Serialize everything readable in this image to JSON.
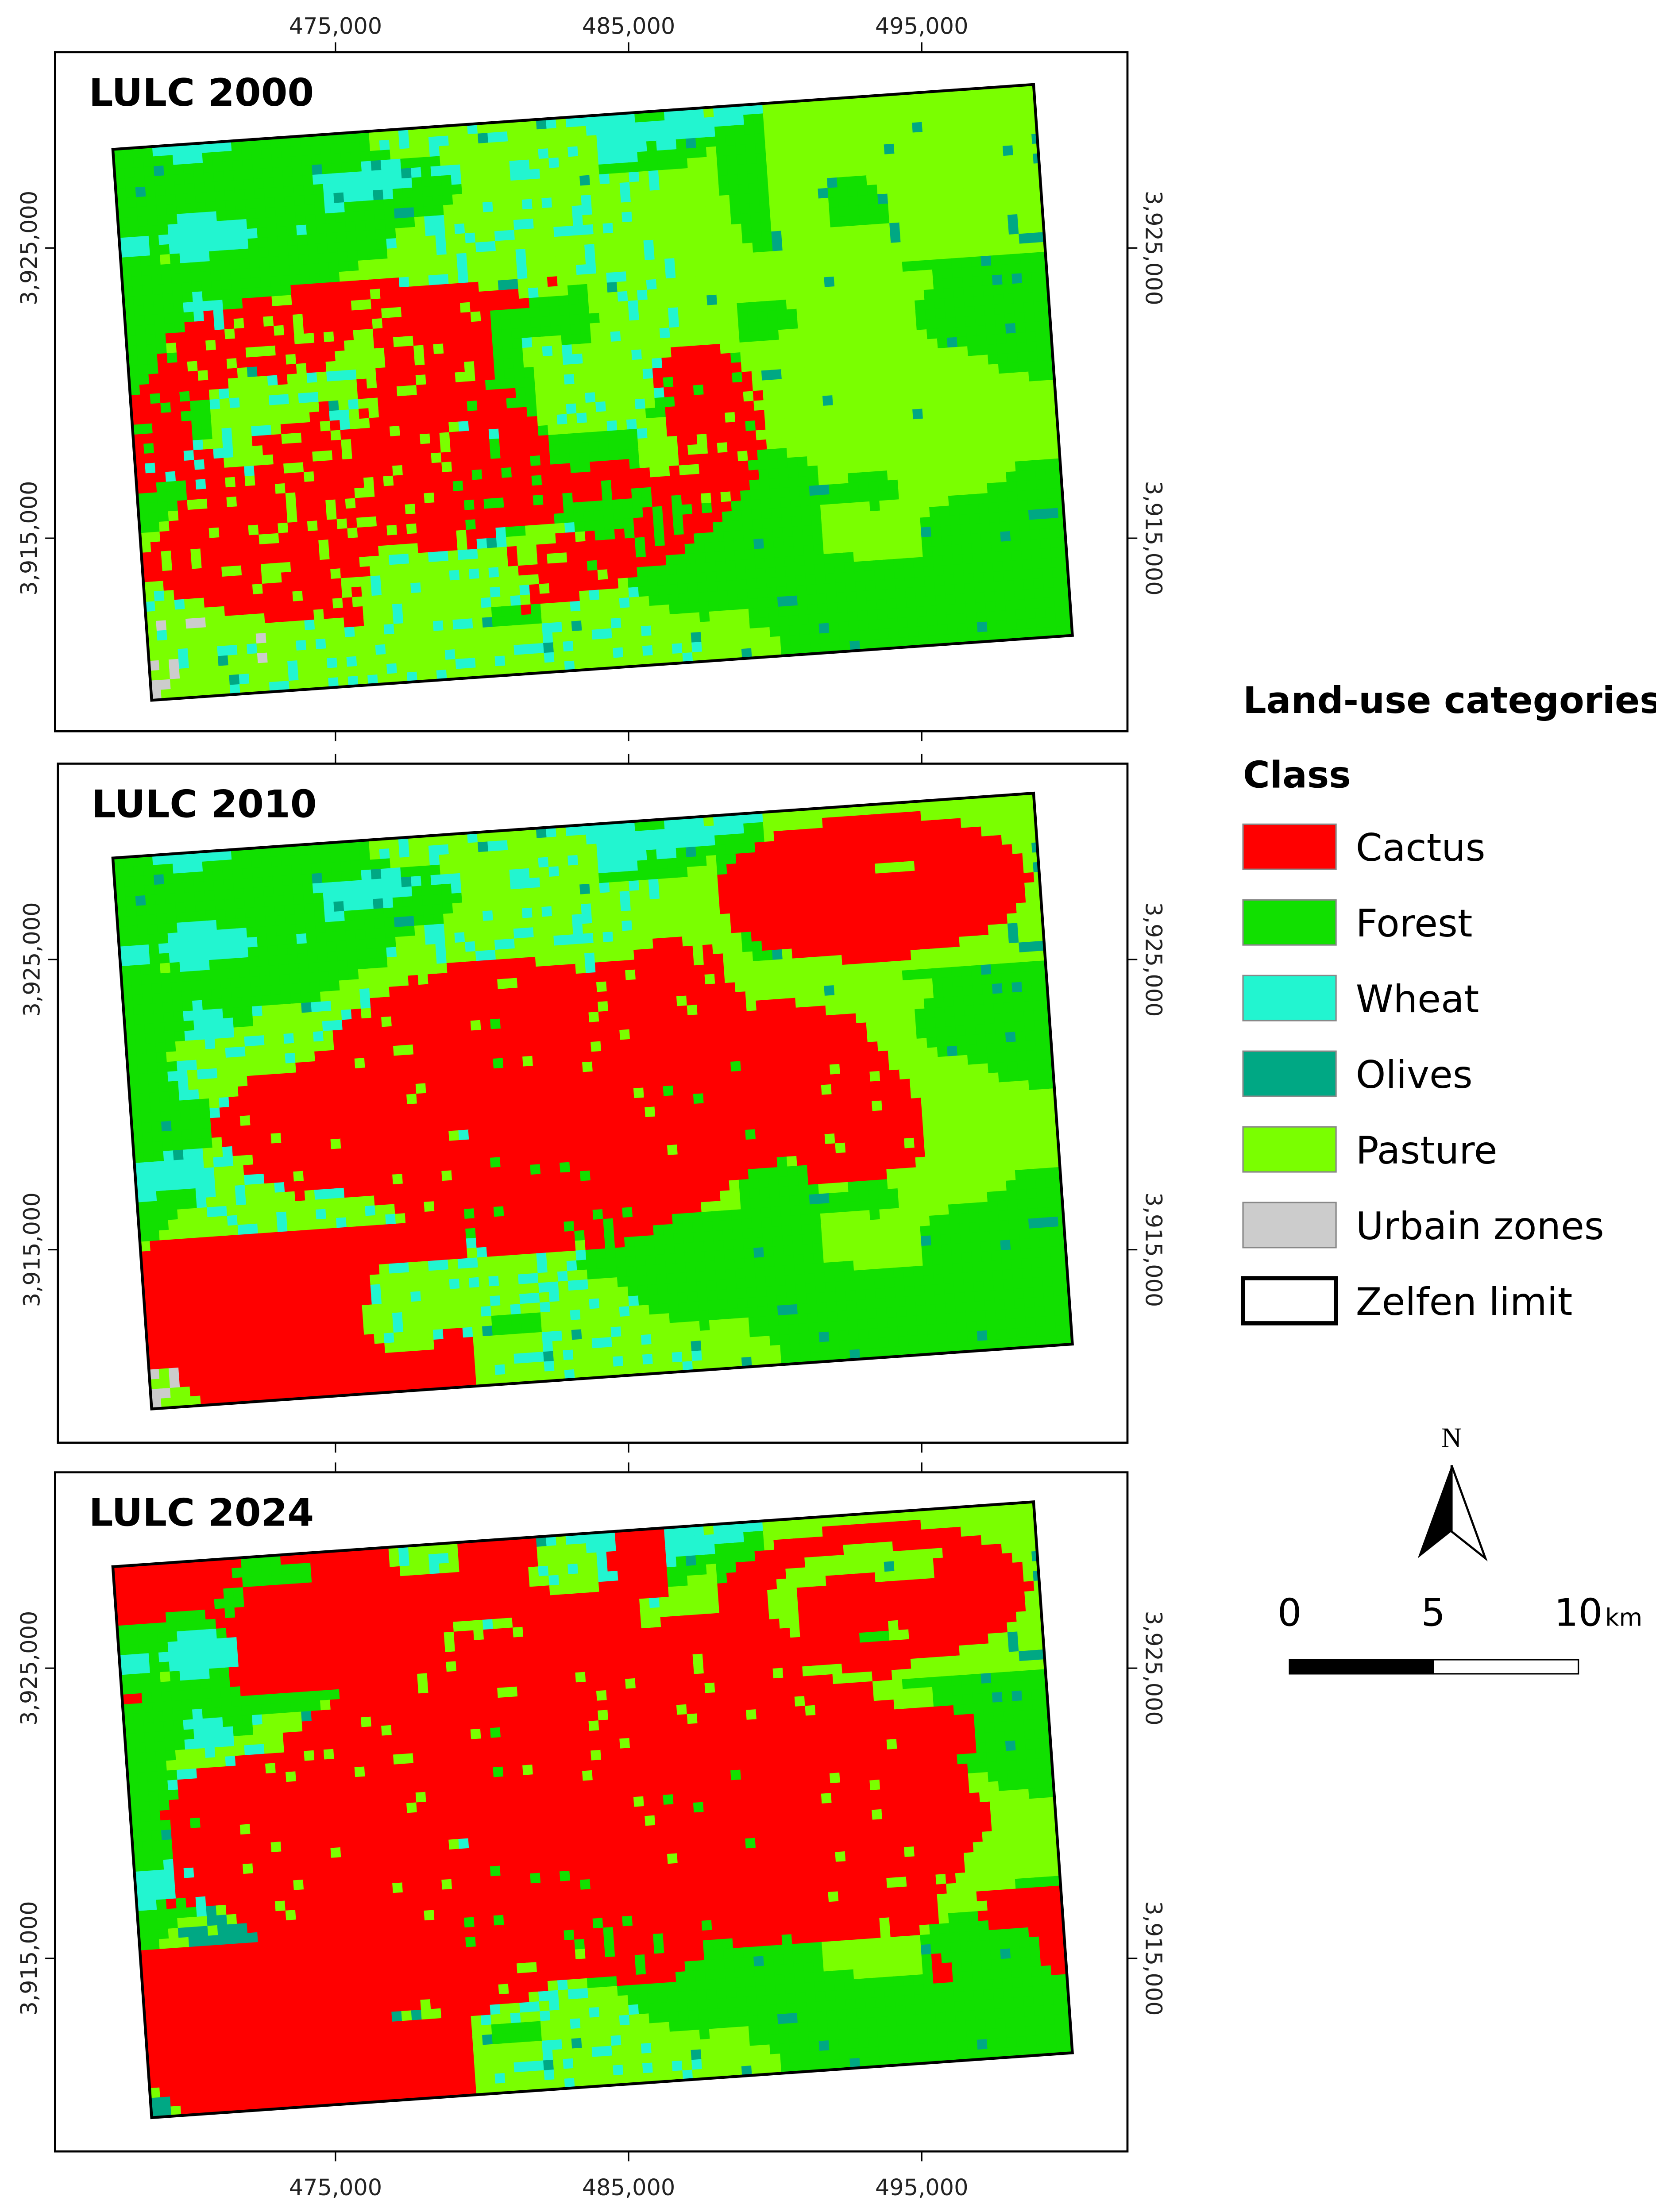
{
  "x_axis_labels": [
    "475,000",
    "485,000",
    "495,000"
  ],
  "y_axis_labels": [
    "3,925,000",
    "3,915,000"
  ],
  "panels": [
    {
      "title": "LULC 2000"
    },
    {
      "title": "LULC 2010"
    },
    {
      "title": "LULC 2024"
    }
  ],
  "legend": {
    "title": "Land-use categories",
    "subtitle": "Class",
    "classes": [
      {
        "name": "Cactus",
        "color": "#ff0000"
      },
      {
        "name": "Forest",
        "color": "#11e000"
      },
      {
        "name": "Wheat",
        "color": "#22f5d0"
      },
      {
        "name": "Olives",
        "color": "#00a884"
      },
      {
        "name": "Pasture",
        "color": "#7aff00"
      },
      {
        "name": "Urbain zones",
        "color": "#cccccc"
      },
      {
        "name": "Zelfen limit",
        "color": "#ffffff"
      }
    ]
  },
  "north_arrow": "N",
  "scale_bar": {
    "labels": [
      "0",
      "5",
      "10"
    ],
    "unit": "km"
  }
}
